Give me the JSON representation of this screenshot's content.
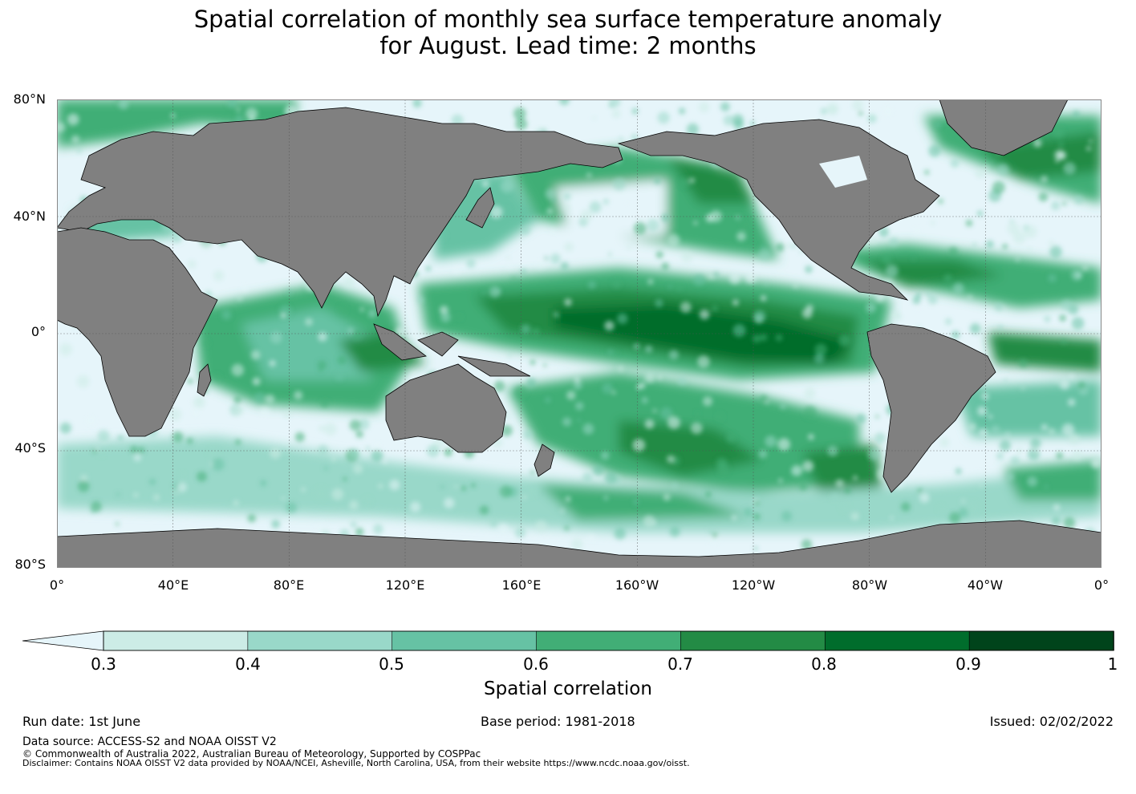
{
  "title": {
    "line1": "Spatial correlation of monthly sea surface temperature anomaly",
    "line2": "for August. Lead time: 2 months"
  },
  "map": {
    "lat_labels": [
      "80°N",
      "40°N",
      "0°",
      "40°S",
      "80°S"
    ],
    "lon_labels": [
      "0°",
      "40°E",
      "80°E",
      "120°E",
      "160°E",
      "160°W",
      "120°W",
      "80°W",
      "40°W",
      "0°"
    ],
    "land_color": "#808080",
    "ocean_base_color": "#e6f5fa",
    "gridline_color": "#555555"
  },
  "colorbar": {
    "ticks": [
      "0.3",
      "0.4",
      "0.5",
      "0.6",
      "0.7",
      "0.8",
      "0.9",
      "1"
    ],
    "label": "Spatial correlation",
    "extend": "min",
    "colors": [
      "#e6f5fa",
      "#ccece6",
      "#99d8c9",
      "#66c2a4",
      "#41ae76",
      "#238b45",
      "#006d2c",
      "#00441b"
    ]
  },
  "footer": {
    "run_date": "Run date: 1st June",
    "base_period": "Base period: 1981-2018",
    "issued": "Issued: 02/02/2022",
    "data_source": "Data source: ACCESS-S2 and NOAA OISST V2",
    "copyright": "© Commonwealth of Australia 2022, Australian Bureau of Meteorology, Supported by COSPPac",
    "disclaimer": "Disclaimer: Contains NOAA OISST V2 data provided by NOAA/NCEI, Asheville, North Carolina, USA, from their website https://www.ncdc.noaa.gov/oisst."
  }
}
